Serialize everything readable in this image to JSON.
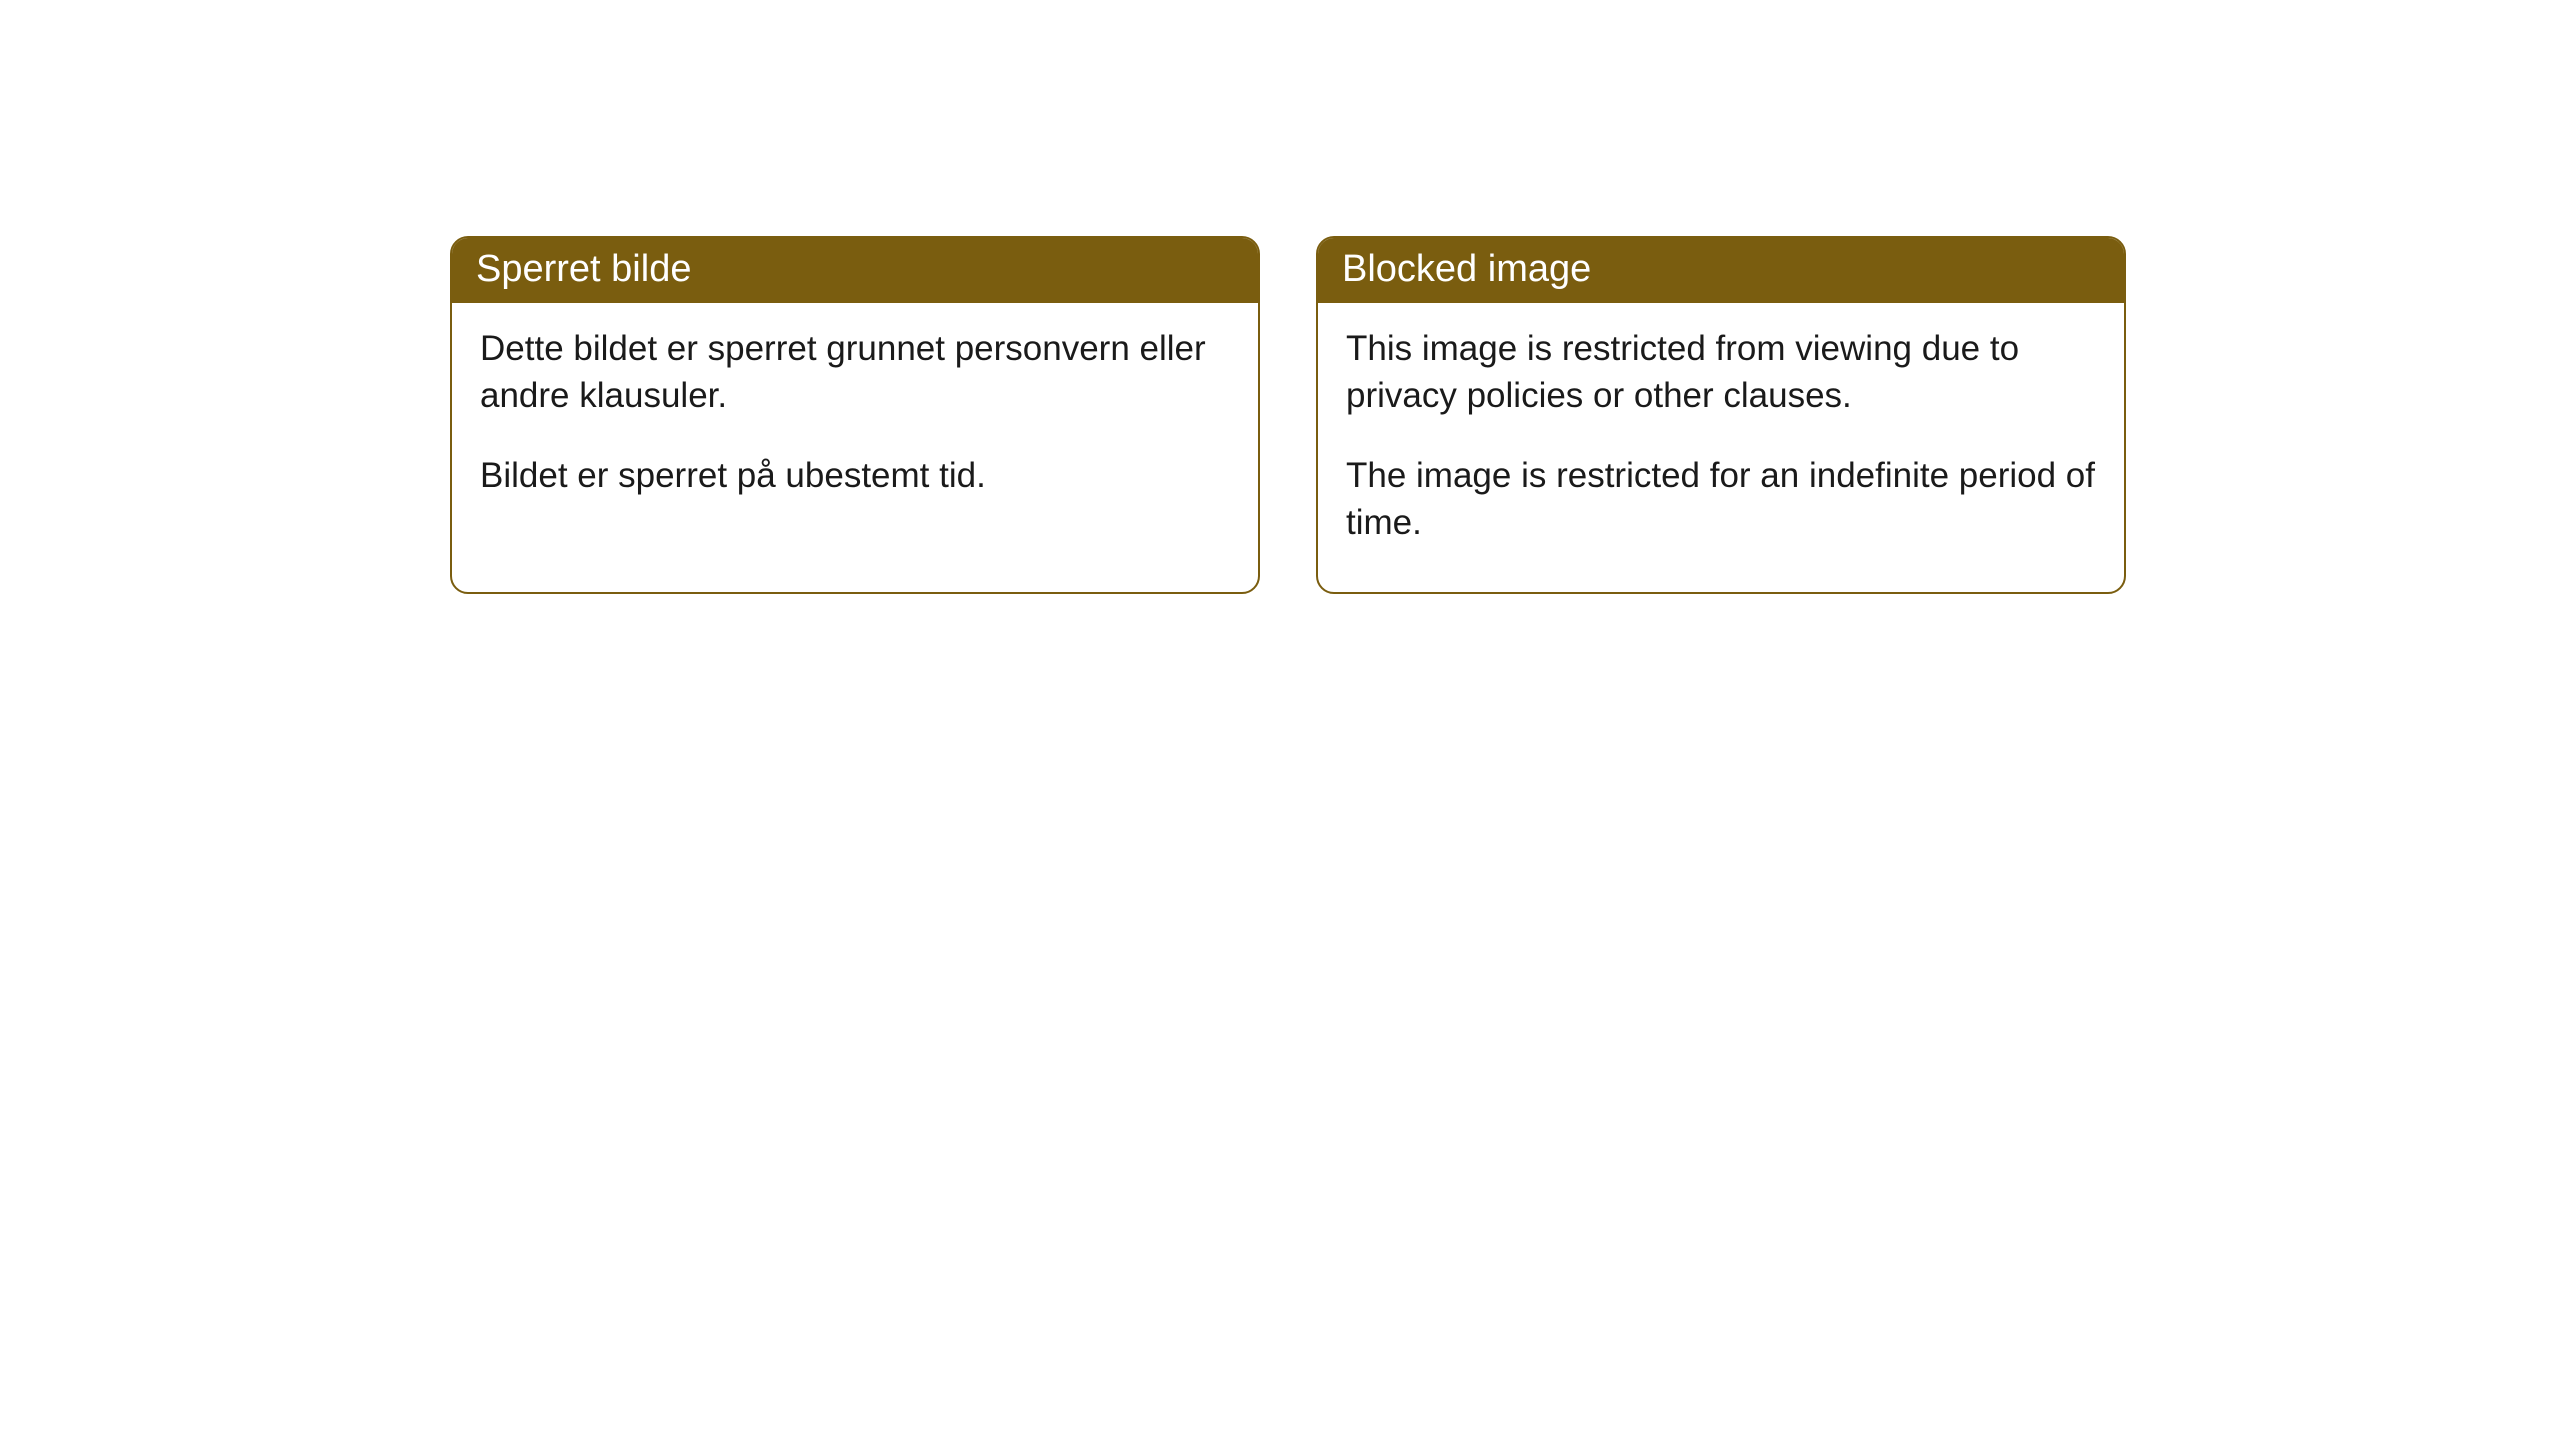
{
  "cards": [
    {
      "title": "Sperret bilde",
      "paragraph1": "Dette bildet er sperret grunnet personvern eller andre klausuler.",
      "paragraph2": "Bildet er sperret på ubestemt tid."
    },
    {
      "title": "Blocked image",
      "paragraph1": "This image is restricted from viewing due to privacy policies or other clauses.",
      "paragraph2": "The image is restricted for an indefinite period of time."
    }
  ],
  "styling": {
    "header_bg_color": "#7a5d0f",
    "header_text_color": "#ffffff",
    "border_color": "#7a5d0f",
    "body_text_color": "#1a1a1a",
    "background_color": "#ffffff",
    "border_radius": 18,
    "header_fontsize": 38,
    "body_fontsize": 35
  }
}
